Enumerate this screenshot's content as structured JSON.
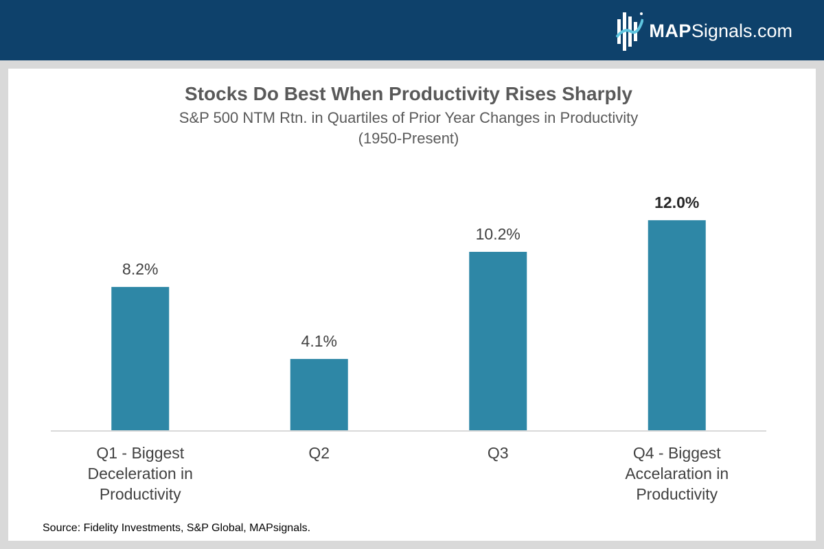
{
  "header": {
    "brand_strong": "MAP",
    "brand_light": "Signals.com",
    "brand_color": "#0e416b"
  },
  "chart_data": {
    "type": "bar",
    "title": "Stocks Do Best When Productivity Rises Sharply",
    "subtitle_line1": "S&P 500 NTM Rtn. in Quartiles of Prior Year Changes in Productivity",
    "subtitle_line2": "(1950-Present)",
    "categories": [
      [
        "Q1 - Biggest",
        "Deceleration in",
        "Productivity"
      ],
      [
        "Q2"
      ],
      [
        "Q3"
      ],
      [
        "Q4 - Biggest",
        "Accelaration in",
        "Productivity"
      ]
    ],
    "values": [
      8.2,
      4.1,
      10.2,
      12.0
    ],
    "value_labels": [
      "8.2%",
      "4.1%",
      "10.2%",
      "12.0%"
    ],
    "highlight_index": 3,
    "ylim": [
      0,
      12.7
    ],
    "grid": false,
    "legend": "none",
    "bar_color": "#2e87a6",
    "xlabel": "",
    "ylabel": ""
  },
  "footer": {
    "source": "Source: Fidelity Investments, S&P Global, MAPsignals."
  }
}
